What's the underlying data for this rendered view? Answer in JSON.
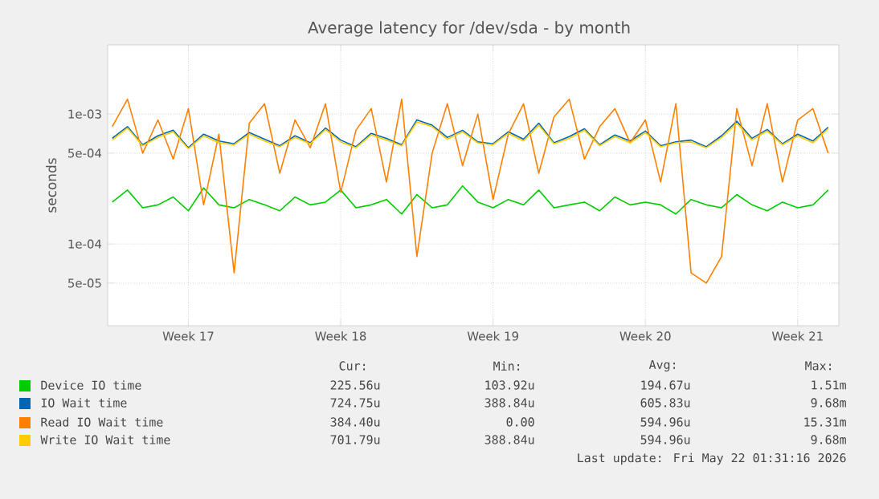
{
  "chart_data": {
    "type": "line",
    "title": "Average latency for /dev/sda - by month",
    "ylabel": "seconds",
    "categories": [
      null,
      null,
      null,
      null,
      null,
      "Week 17",
      null,
      null,
      null,
      null,
      null,
      null,
      null,
      null,
      null,
      "Week 18",
      null,
      null,
      null,
      null,
      null,
      null,
      null,
      null,
      null,
      "Week 19",
      null,
      null,
      null,
      null,
      null,
      null,
      null,
      null,
      null,
      "Week 20",
      null,
      null,
      null,
      null,
      null,
      null,
      null,
      null,
      null,
      "Week 21",
      null,
      null
    ],
    "series": [
      {
        "name": "Device IO time",
        "color": "#00cc00",
        "values": [
          0.00021,
          0.00026,
          0.00019,
          0.0002,
          0.00023,
          0.00018,
          0.00027,
          0.0002,
          0.00019,
          0.00022,
          0.0002,
          0.00018,
          0.00023,
          0.0002,
          0.00021,
          0.00026,
          0.00019,
          0.0002,
          0.00022,
          0.00017,
          0.00024,
          0.00019,
          0.0002,
          0.00028,
          0.00021,
          0.00019,
          0.00022,
          0.0002,
          0.00026,
          0.00019,
          0.0002,
          0.00021,
          0.00018,
          0.00023,
          0.0002,
          0.00021,
          0.0002,
          0.00017,
          0.00022,
          0.0002,
          0.00019,
          0.00024,
          0.0002,
          0.00018,
          0.00021,
          0.00019,
          0.0002,
          0.00026
        ]
      },
      {
        "name": "IO Wait time",
        "color": "#0066b3",
        "values": [
          0.00065,
          0.0008,
          0.00058,
          0.00068,
          0.00075,
          0.00055,
          0.0007,
          0.00062,
          0.00059,
          0.00072,
          0.00064,
          0.00057,
          0.00068,
          0.0006,
          0.00078,
          0.00063,
          0.00056,
          0.00071,
          0.00065,
          0.00058,
          0.0009,
          0.00082,
          0.00066,
          0.00075,
          0.00061,
          0.00059,
          0.00073,
          0.00064,
          0.00085,
          0.0006,
          0.00067,
          0.00077,
          0.00058,
          0.00069,
          0.00062,
          0.00074,
          0.00057,
          0.00061,
          0.00063,
          0.00056,
          0.00068,
          0.00088,
          0.00065,
          0.00076,
          0.00059,
          0.0007,
          0.00062,
          0.00079
        ]
      },
      {
        "name": "Read IO Wait time",
        "color": "#ff8000",
        "values": [
          0.0008,
          0.0013,
          0.0005,
          0.0009,
          0.00045,
          0.0011,
          0.0002,
          0.0007,
          6e-05,
          0.00085,
          0.0012,
          0.00035,
          0.0009,
          0.00055,
          0.0012,
          0.00025,
          0.00075,
          0.0011,
          0.0003,
          0.0013,
          8e-05,
          0.0005,
          0.0012,
          0.0004,
          0.001,
          0.00022,
          0.0007,
          0.0012,
          0.00035,
          0.00095,
          0.0013,
          0.00045,
          0.0008,
          0.0011,
          0.0006,
          0.0009,
          0.0003,
          0.0012,
          6e-05,
          5e-05,
          8e-05,
          0.0011,
          0.0004,
          0.0012,
          0.0003,
          0.0009,
          0.0011,
          0.0005
        ]
      },
      {
        "name": "Write IO Wait time",
        "color": "#ffcc00",
        "values": [
          0.00063,
          0.00078,
          0.00057,
          0.00066,
          0.00073,
          0.00054,
          0.00068,
          0.0006,
          0.00058,
          0.0007,
          0.00062,
          0.00056,
          0.00066,
          0.00059,
          0.00076,
          0.00061,
          0.00055,
          0.00069,
          0.00063,
          0.00057,
          0.00087,
          0.0008,
          0.00064,
          0.00073,
          0.0006,
          0.00058,
          0.00071,
          0.00062,
          0.00082,
          0.00059,
          0.00065,
          0.00075,
          0.00057,
          0.00067,
          0.0006,
          0.00072,
          0.00056,
          0.0006,
          0.00061,
          0.00055,
          0.00066,
          0.00085,
          0.00063,
          0.00074,
          0.00058,
          0.00068,
          0.0006,
          0.00077
        ]
      }
    ],
    "ylim": [
      2.35e-05,
      0.0034
    ],
    "yticks": [
      {
        "value": 5e-05,
        "label": "5e-05"
      },
      {
        "value": 0.0001,
        "label": "1e-04"
      },
      {
        "value": 0.0005,
        "label": "5e-04"
      },
      {
        "value": 0.001,
        "label": "1e-03"
      }
    ],
    "log": "y",
    "grid": true,
    "legend": "bottom",
    "annotations": [
      "Cur:",
      "Min:",
      "Avg:",
      "Max:",
      "225.56u",
      "103.92u",
      "194.67u",
      "1.51m",
      "724.75u",
      "388.84u",
      "605.83u",
      "9.68m",
      "384.40u",
      "0.00",
      "594.96u",
      "15.31m",
      "701.79u",
      "388.84u",
      "594.96u",
      "9.68m",
      "Last update: Fri May 22 01:31:16 2026"
    ]
  }
}
